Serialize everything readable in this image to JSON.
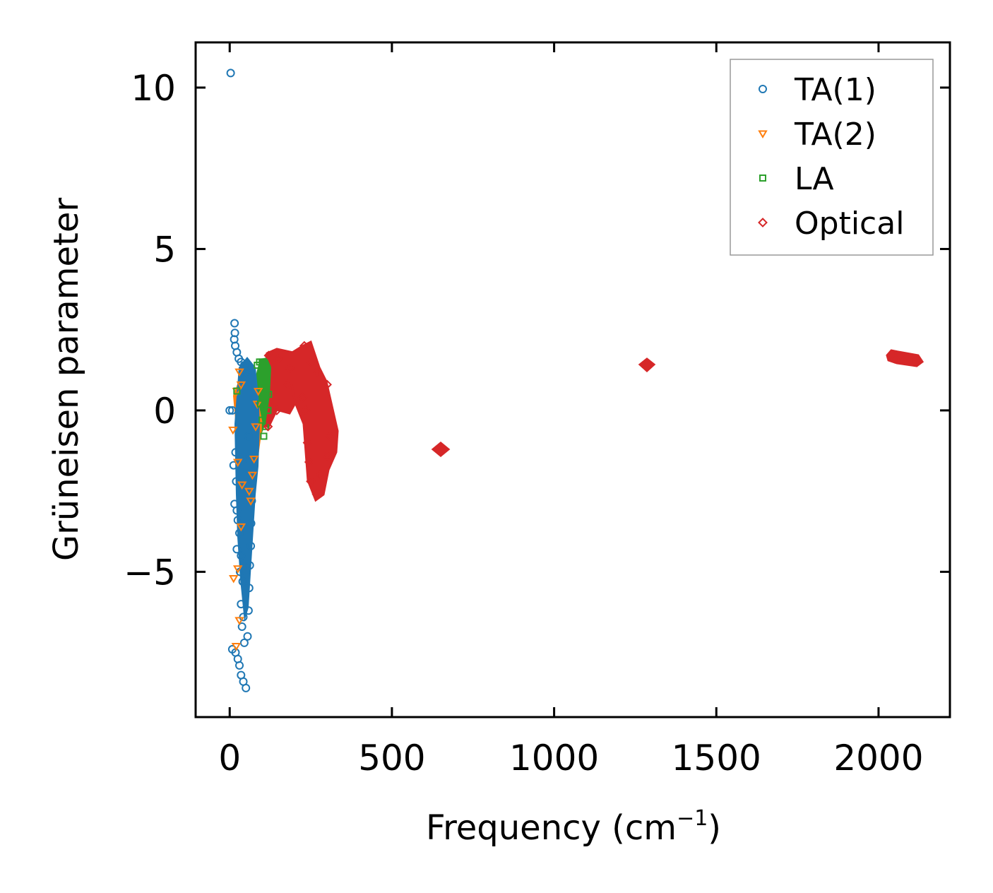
{
  "chart_data": {
    "type": "scatter",
    "xlabel": "Frequency (cm",
    "xlabel_sup": "−1",
    "xlabel_close": ")",
    "ylabel": "Grüneisen parameter",
    "xlim": [
      -105,
      2220
    ],
    "ylim": [
      -9.5,
      11.4
    ],
    "xticks": [
      0,
      500,
      1000,
      1500,
      2000
    ],
    "xtick_labels": [
      "0",
      "500",
      "1000",
      "1500",
      "2000"
    ],
    "yticks": [
      10,
      5,
      0,
      -5
    ],
    "ytick_labels": [
      "10",
      "5",
      "0",
      "−5"
    ],
    "grid": false,
    "legend_position": "top-right",
    "series": [
      {
        "name": "TA(1)",
        "marker": "circle",
        "color": "#1f77b4",
        "points": [
          [
            3,
            10.45
          ],
          [
            15,
            2.7
          ],
          [
            16,
            2.4
          ],
          [
            14,
            2.2
          ],
          [
            17,
            2.0
          ],
          [
            22,
            1.8
          ],
          [
            28,
            1.6
          ],
          [
            35,
            1.5
          ],
          [
            45,
            1.4
          ],
          [
            50,
            1.2
          ],
          [
            55,
            1.1
          ],
          [
            0,
            0
          ],
          [
            8,
            0
          ],
          [
            18,
            -1.3
          ],
          [
            12,
            -1.7
          ],
          [
            20,
            -2.2
          ],
          [
            15,
            -2.9
          ],
          [
            22,
            -3.1
          ],
          [
            25,
            -3.4
          ],
          [
            30,
            -3.8
          ],
          [
            22,
            -4.3
          ],
          [
            35,
            -4.5
          ],
          [
            32,
            -5.0
          ],
          [
            40,
            -5.3
          ],
          [
            35,
            -6.0
          ],
          [
            42,
            -6.4
          ],
          [
            38,
            -6.7
          ],
          [
            45,
            -7.2
          ],
          [
            8,
            -7.4
          ],
          [
            18,
            -7.5
          ],
          [
            25,
            -7.7
          ],
          [
            30,
            -7.9
          ],
          [
            35,
            -8.2
          ],
          [
            42,
            -8.4
          ],
          [
            50,
            -8.6
          ],
          [
            55,
            -7.0
          ],
          [
            58,
            -6.2
          ],
          [
            60,
            -5.5
          ],
          [
            62,
            -4.8
          ],
          [
            65,
            -4.2
          ],
          [
            66,
            -3.5
          ],
          [
            68,
            -2.8
          ],
          [
            70,
            -2.2
          ],
          [
            60,
            -1.5
          ],
          [
            58,
            -0.8
          ]
        ]
      },
      {
        "name": "TA(2)",
        "marker": "triangle-down",
        "color": "#ff7f0e",
        "points": [
          [
            10,
            -0.6
          ],
          [
            25,
            -1.6
          ],
          [
            12,
            -5.2
          ],
          [
            25,
            -4.9
          ],
          [
            35,
            -3.6
          ],
          [
            30,
            -6.5
          ],
          [
            20,
            -7.3
          ],
          [
            38,
            -2.3
          ],
          [
            60,
            -2.5
          ],
          [
            65,
            -2.8
          ],
          [
            70,
            -2.0
          ],
          [
            75,
            -1.5
          ],
          [
            80,
            -0.5
          ],
          [
            85,
            0.2
          ],
          [
            88,
            0.6
          ],
          [
            30,
            1.2
          ],
          [
            35,
            0.8
          ],
          [
            22,
            0.6
          ]
        ]
      },
      {
        "name": "LA",
        "marker": "square",
        "color": "#2ca02c",
        "points": [
          [
            22,
            0.6
          ],
          [
            85,
            1.4
          ],
          [
            92,
            1.5
          ],
          [
            100,
            1.5
          ],
          [
            108,
            1.5
          ],
          [
            115,
            1.3
          ],
          [
            95,
            0.2
          ],
          [
            100,
            -0.3
          ],
          [
            105,
            -0.8
          ],
          [
            110,
            -0.5
          ],
          [
            118,
            0.0
          ],
          [
            120,
            0.5
          ]
        ]
      },
      {
        "name": "Optical",
        "marker": "diamond",
        "color": "#d62728",
        "points": [
          [
            120,
            1.7
          ],
          [
            150,
            1.6
          ],
          [
            185,
            1.3
          ],
          [
            230,
            2.0
          ],
          [
            250,
            1.5
          ],
          [
            270,
            1.2
          ],
          [
            300,
            0.8
          ],
          [
            310,
            -0.8
          ],
          [
            300,
            -1.4
          ],
          [
            280,
            -2.0
          ],
          [
            268,
            -2.6
          ],
          [
            250,
            -2.2
          ],
          [
            245,
            -1.6
          ],
          [
            240,
            -1.0
          ],
          [
            235,
            0.0
          ],
          [
            225,
            0.4
          ],
          [
            180,
            0.8
          ],
          [
            145,
            0.0
          ],
          [
            118,
            -0.5
          ],
          [
            650,
            -1.25
          ],
          [
            1290,
            1.4
          ],
          [
            2050,
            1.6
          ],
          [
            2080,
            1.55
          ],
          [
            2110,
            1.5
          ]
        ]
      }
    ]
  }
}
